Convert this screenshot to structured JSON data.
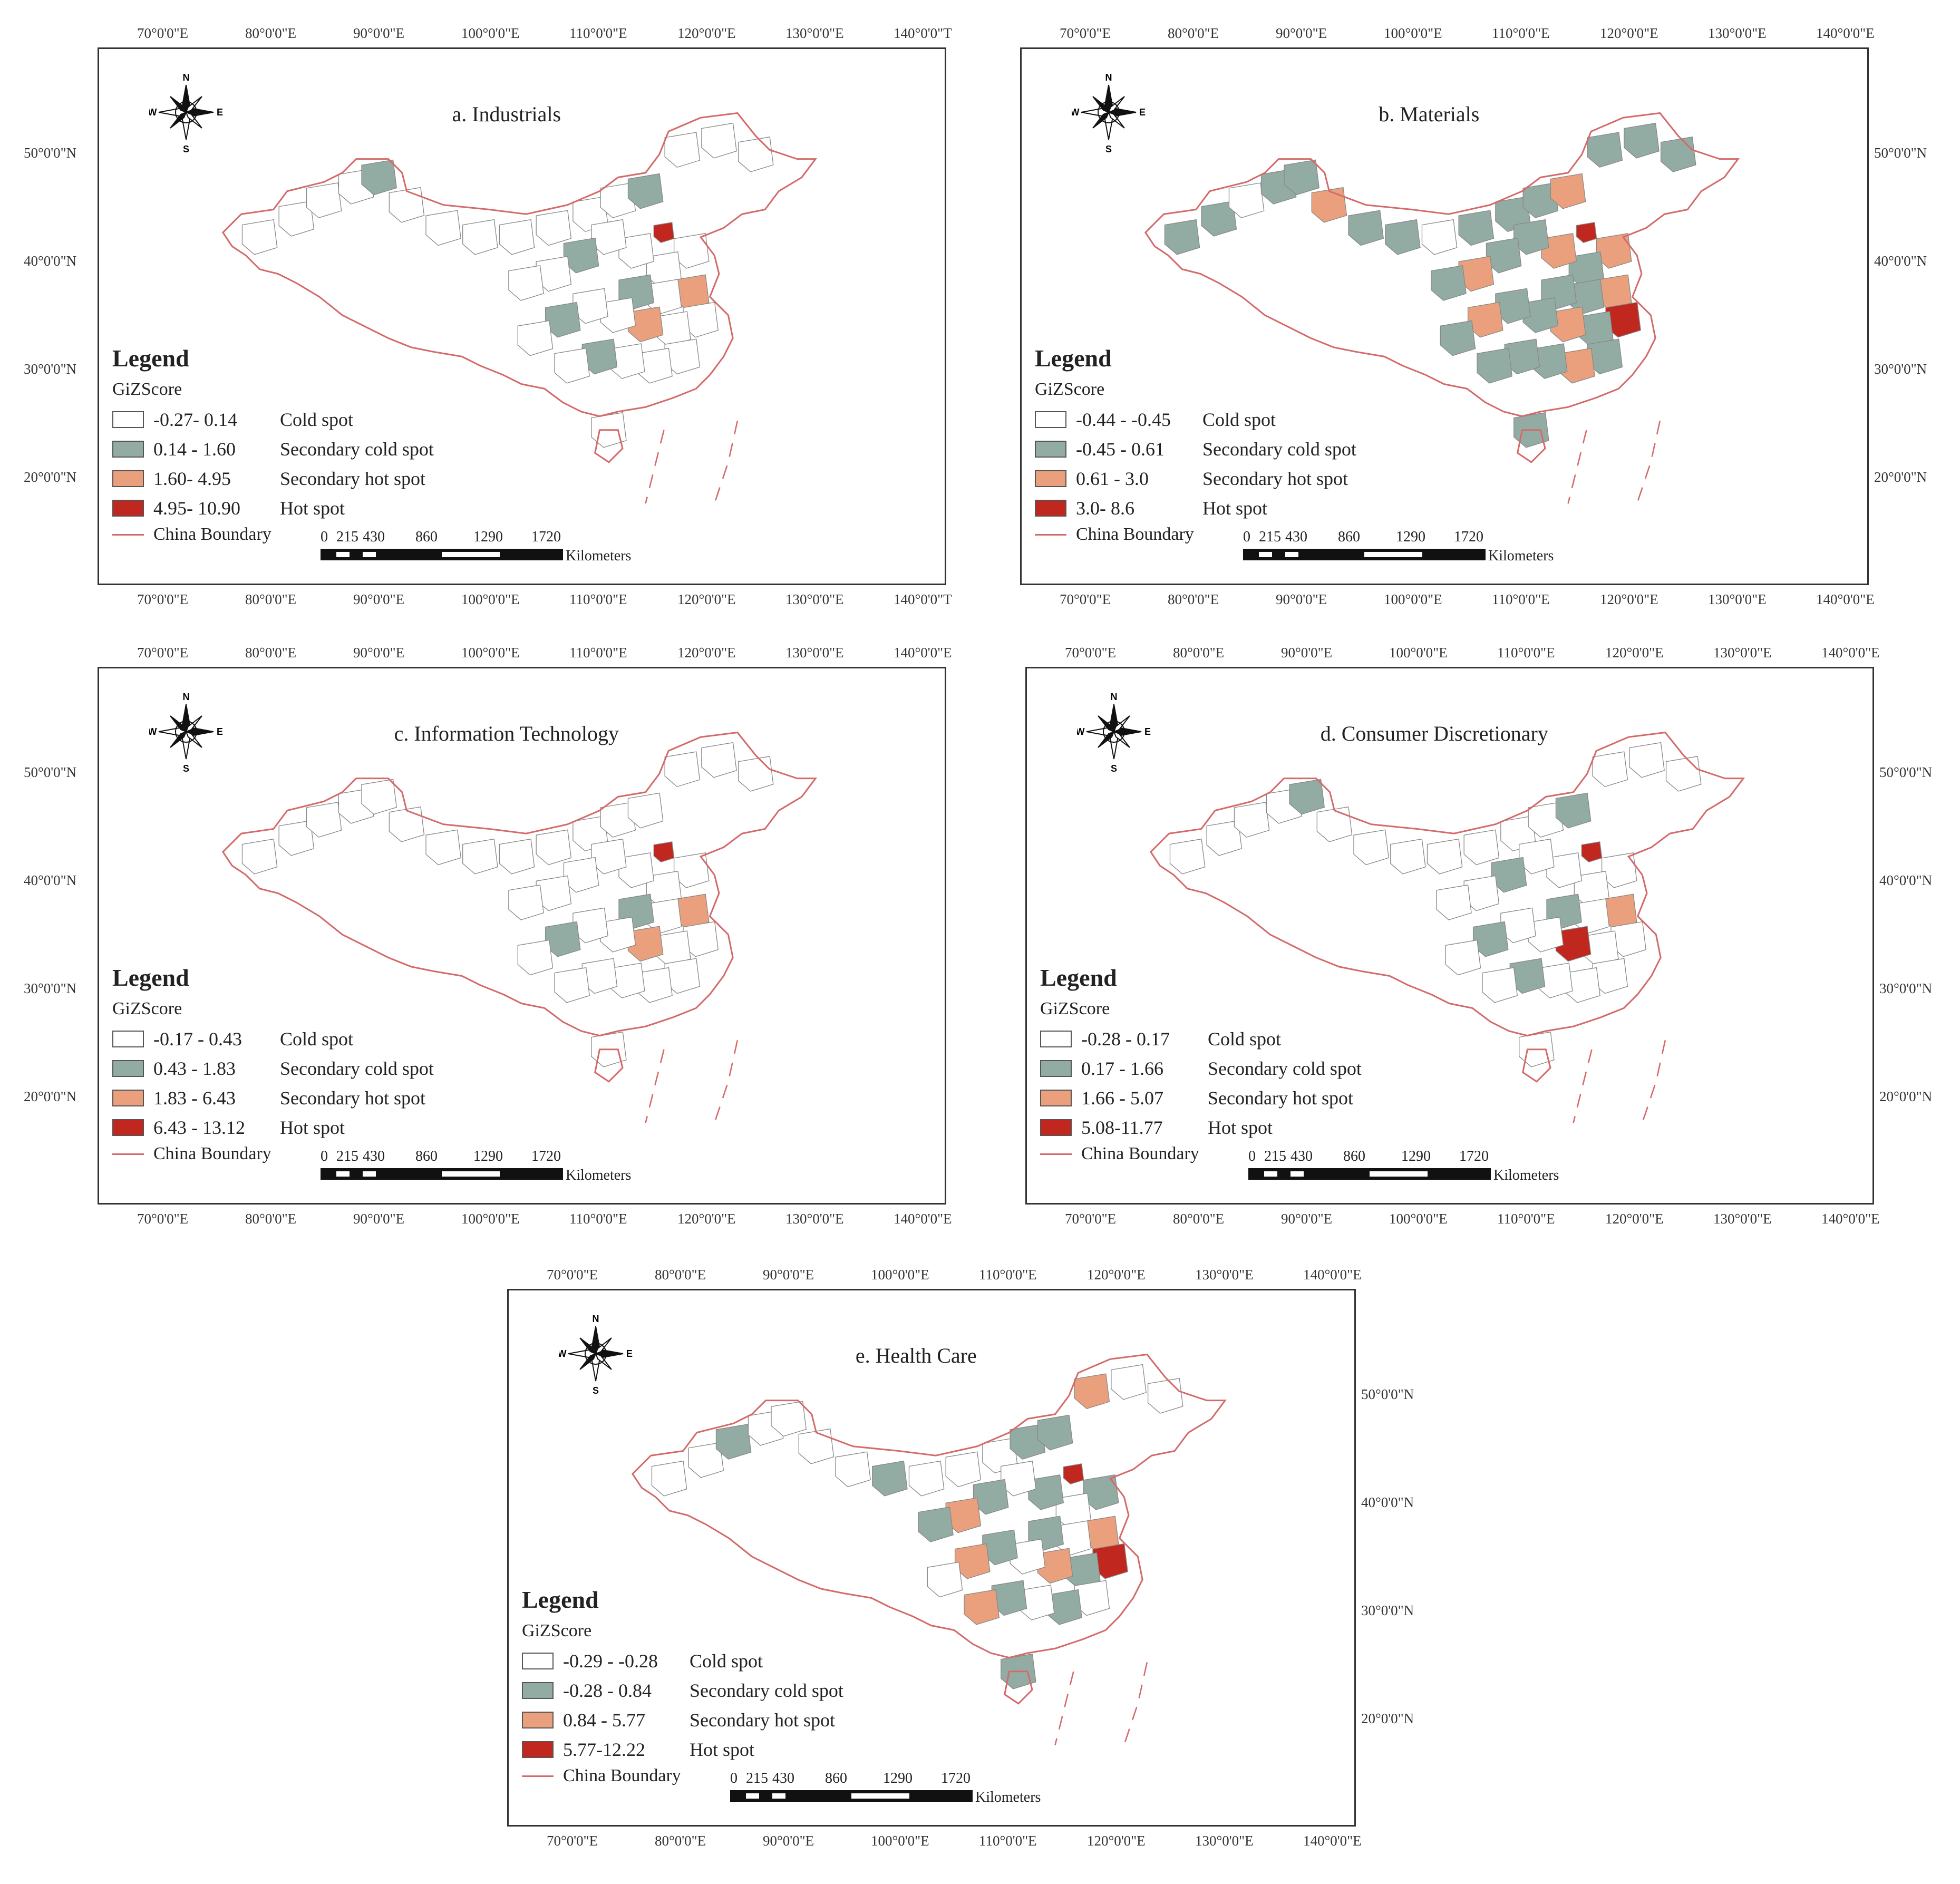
{
  "colors": {
    "cold": "#ffffff",
    "secondary_cold": "#93aca3",
    "secondary_hot": "#eba07d",
    "hot": "#c0281f",
    "boundary": "#d46a6a"
  },
  "icons": {
    "compass": "north-arrow-compass-rose"
  },
  "compass_letters": {
    "n": "N",
    "e": "E",
    "s": "S",
    "w": "W"
  },
  "lon_labels": [
    "70°0'0\"E",
    "80°0'0\"E",
    "90°0'0\"E",
    "100°0'0\"E",
    "110°0'0\"E",
    "120°0'0\"E",
    "130°0'0\"E",
    "140°0'0\"E"
  ],
  "lon_labels_top_a": [
    "70°0'0\"E",
    "80°0'0\"E",
    "90°0'0\"E",
    "100°0'0\"E",
    "110°0'0\"E",
    "120°0'0\"E",
    "130°0'0\"E",
    "140°0'0\"T"
  ],
  "lon_labels_bottom_a": [
    "70°0'0\"E",
    "80°0'0\"E",
    "90°0'0\"E",
    "100°0'0\"E",
    "110°0'0\"E",
    "120°0'0\"E",
    "130°0'0\"E",
    "140°0'0\"T"
  ],
  "lat_labels": [
    "50°0'0\"N",
    "40°0'0\"N",
    "30°0'0\"N",
    "20°0'0\"N"
  ],
  "scale": {
    "values": [
      "0",
      "215",
      "430",
      "860",
      "1290",
      "1720"
    ],
    "unit": "Kilometers"
  },
  "legend_title": "Legend",
  "legend_subtitle": "GiZScore",
  "boundary_label": "China Boundary",
  "maps": [
    {
      "title": "a. Industrials",
      "classes": [
        {
          "range": "-0.27- 0.14",
          "label": "Cold spot"
        },
        {
          "range": "0.14 - 1.60",
          "label": "Secondary cold spot"
        },
        {
          "range": "1.60- 4.95",
          "label": "Secondary hot spot"
        },
        {
          "range": "4.95- 10.90",
          "label": "Hot spot"
        }
      ]
    },
    {
      "title": "b. Materials",
      "classes": [
        {
          "range": "-0.44 - -0.45",
          "label": "Cold spot"
        },
        {
          "range": "-0.45 - 0.61",
          "label": "Secondary cold spot"
        },
        {
          "range": "0.61 - 3.0",
          "label": "Secondary hot spot"
        },
        {
          "range": "3.0- 8.6",
          "label": "Hot spot"
        }
      ]
    },
    {
      "title": "c. Information Technology",
      "classes": [
        {
          "range": "-0.17 - 0.43",
          "label": "Cold spot"
        },
        {
          "range": "0.43 - 1.83",
          "label": "Secondary cold spot"
        },
        {
          "range": "1.83 - 6.43",
          "label": "Secondary hot spot"
        },
        {
          "range": "6.43 - 13.12",
          "label": "Hot spot"
        }
      ]
    },
    {
      "title": "d. Consumer Discretionary",
      "classes": [
        {
          "range": "-0.28 - 0.17",
          "label": "Cold spot"
        },
        {
          "range": "0.17 - 1.66",
          "label": "Secondary cold spot"
        },
        {
          "range": "1.66 - 5.07",
          "label": "Secondary hot spot"
        },
        {
          "range": "5.08-11.77",
          "label": "Hot spot"
        }
      ]
    },
    {
      "title": "e. Health Care",
      "classes": [
        {
          "range": "-0.29 - -0.28",
          "label": "Cold spot"
        },
        {
          "range": "-0.28 - 0.84",
          "label": "Secondary cold spot"
        },
        {
          "range": "0.84 - 5.77",
          "label": "Secondary hot spot"
        },
        {
          "range": "5.77-12.22",
          "label": "Hot spot"
        }
      ]
    }
  ]
}
